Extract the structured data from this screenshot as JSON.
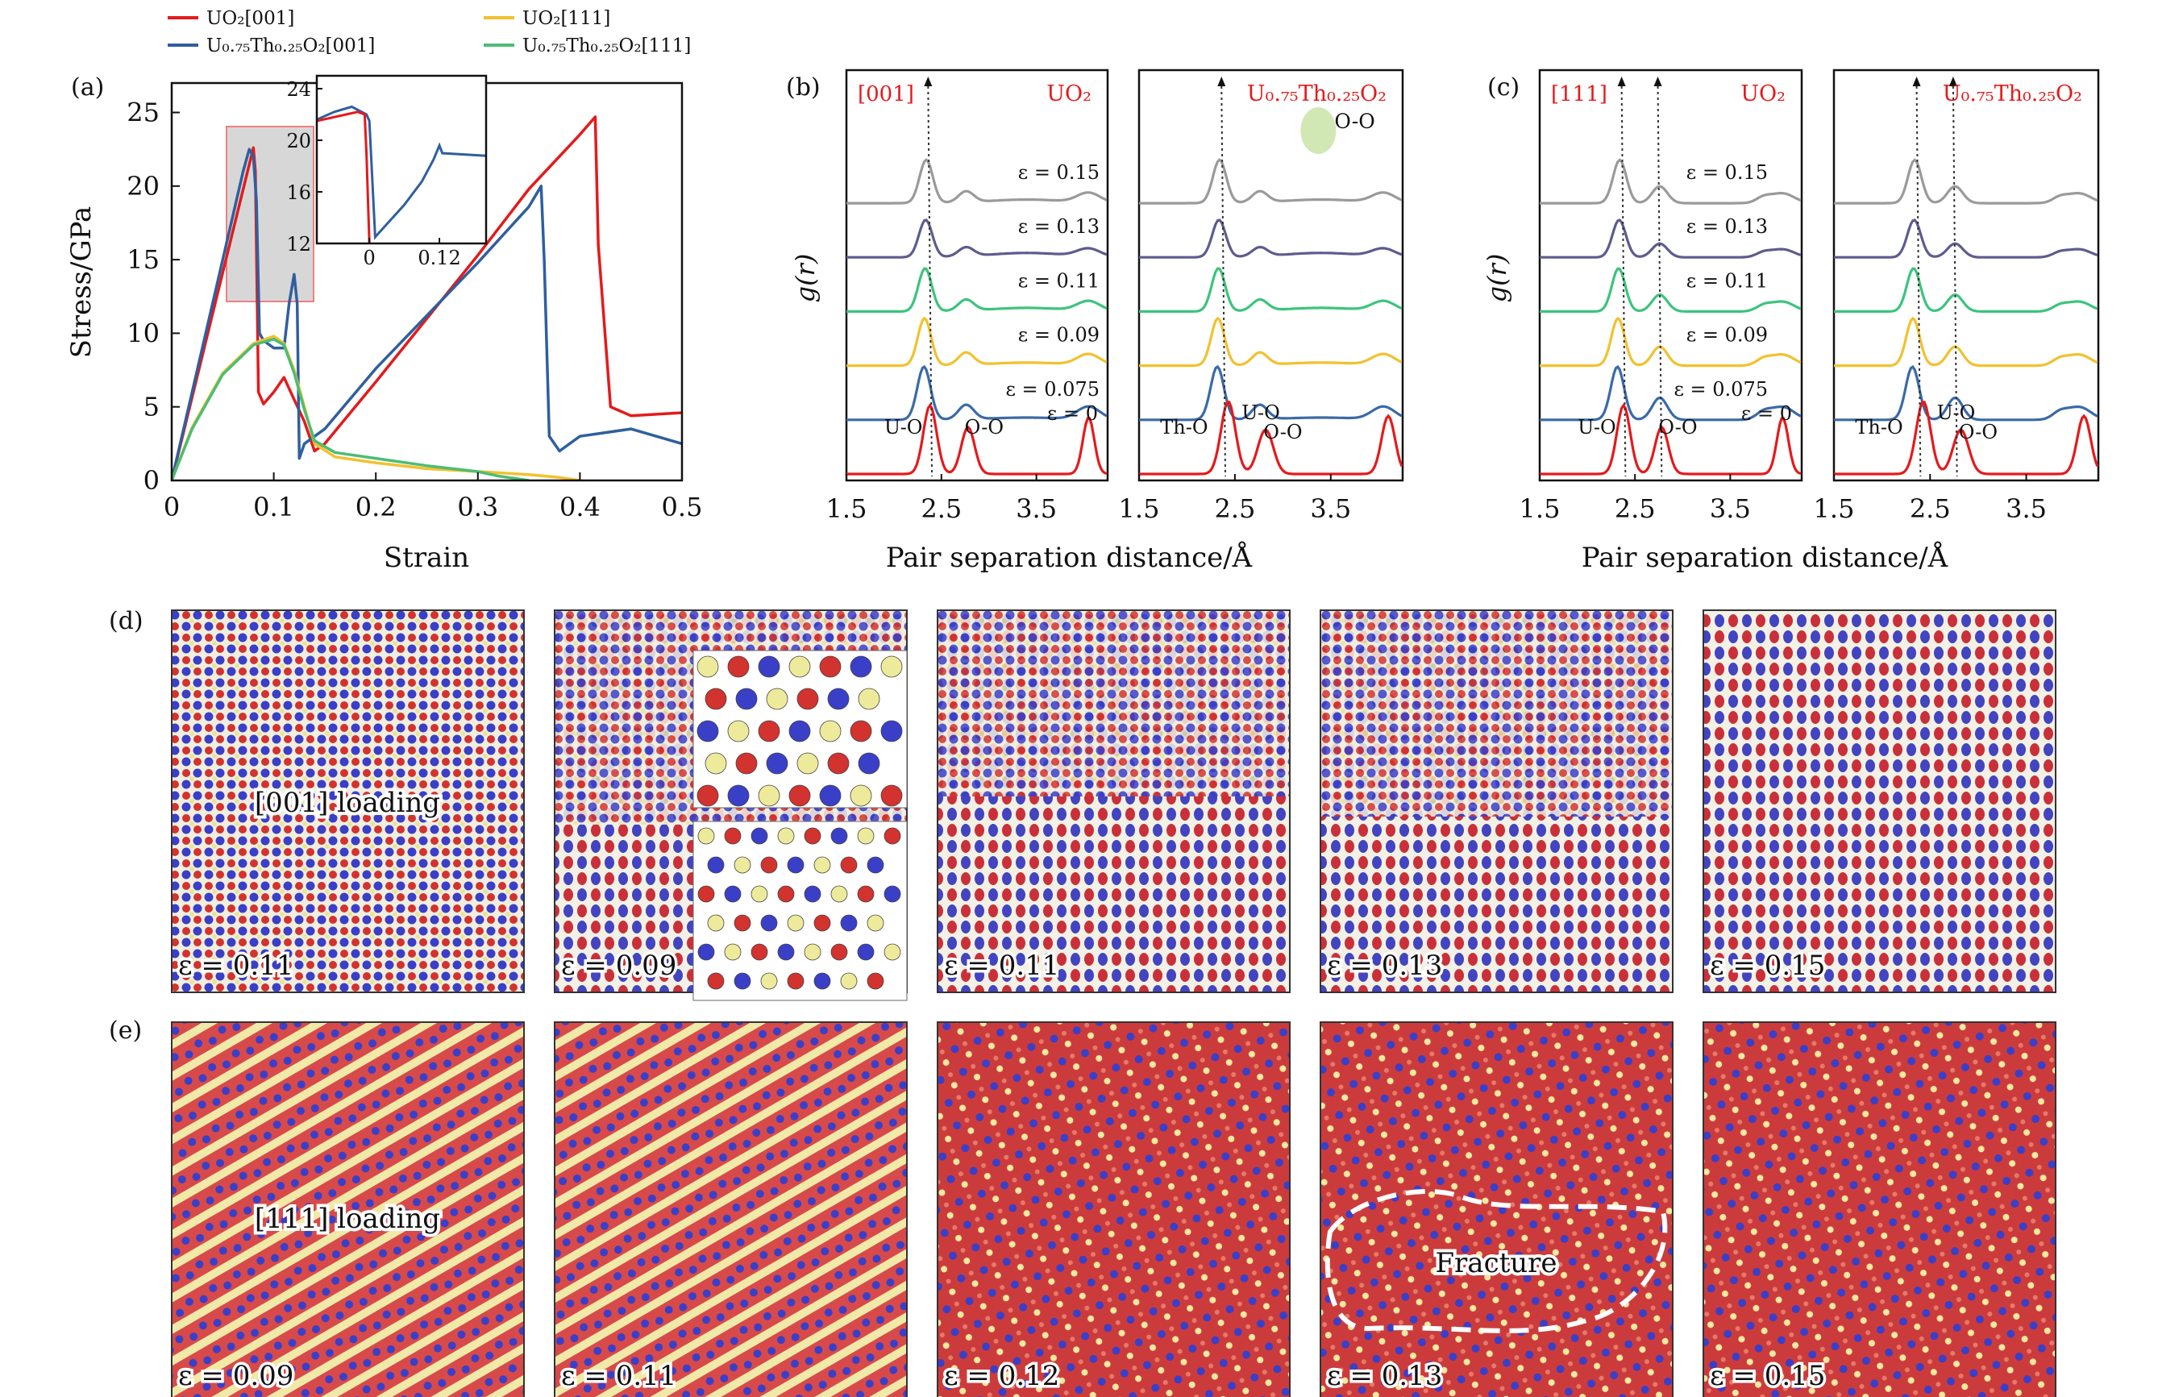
{
  "legend": [
    {
      "label": "UO₂[001]",
      "color": "#e41a1c"
    },
    {
      "label": "U₀.₇₅Th₀.₂₅O₂[001]",
      "color": "#2f5f9e"
    },
    {
      "label": "UO₂[111]",
      "color": "#f2c12e"
    },
    {
      "label": "U₀.₇₅Th₀.₂₅O₂[111]",
      "color": "#4dbd74"
    }
  ],
  "colors": {
    "grey": "#9a9a9a",
    "purple": "#5e5b8f",
    "green": "#3cc47c",
    "yellow": "#f2c12e",
    "blue": "#3a6aa8",
    "red": "#e41a1c",
    "o_atom": "#d2332e",
    "u_atom": "#3a3fc8",
    "th_atom": "#eeea9c"
  },
  "chart_data": [
    {
      "panel": "(a)",
      "type": "line",
      "xlabel": "Strain",
      "ylabel": "Stress/GPa",
      "xlim": [
        0,
        0.5
      ],
      "ylim": [
        0,
        27
      ],
      "xticks": [
        "0",
        "0.1",
        "0.2",
        "0.3",
        "0.4",
        "0.5"
      ],
      "yticks": [
        "0",
        "5",
        "10",
        "15",
        "20",
        "25"
      ],
      "series": [
        {
          "name": "UO₂[001]",
          "color": "#e41a1c",
          "x": [
            0,
            0.08,
            0.082,
            0.085,
            0.09,
            0.1,
            0.11,
            0.12,
            0.13,
            0.14,
            0.15,
            0.2,
            0.25,
            0.3,
            0.35,
            0.4,
            0.415,
            0.418,
            0.43,
            0.45,
            0.5
          ],
          "y": [
            0,
            22.6,
            21,
            6,
            5.2,
            6,
            7,
            5.5,
            4,
            2,
            2.5,
            6.7,
            11,
            15.3,
            19.8,
            23.5,
            24.7,
            16,
            5,
            4.4,
            4.6
          ]
        },
        {
          "name": "U₀.₇₅Th₀.₂₅O₂[001]",
          "color": "#2f5f9e",
          "x": [
            0,
            0.07,
            0.076,
            0.08,
            0.083,
            0.086,
            0.09,
            0.1,
            0.11,
            0.115,
            0.12,
            0.123,
            0.125,
            0.13,
            0.15,
            0.2,
            0.25,
            0.3,
            0.35,
            0.362,
            0.365,
            0.37,
            0.38,
            0.4,
            0.45,
            0.5
          ],
          "y": [
            0,
            21,
            22.5,
            22,
            19,
            10,
            9.5,
            9,
            9,
            12,
            14,
            12,
            1.5,
            2.5,
            3.5,
            7.6,
            11.2,
            14.8,
            18.6,
            20,
            15,
            3,
            2,
            3,
            3.5,
            2.5
          ]
        },
        {
          "name": "UO₂[111]",
          "color": "#f2c12e",
          "x": [
            0,
            0.02,
            0.05,
            0.08,
            0.1,
            0.11,
            0.12,
            0.13,
            0.14,
            0.16,
            0.2,
            0.25,
            0.3,
            0.35,
            0.38,
            0.4
          ],
          "y": [
            0,
            3.6,
            7.3,
            9.3,
            9.8,
            9.3,
            7.5,
            5,
            2.5,
            1.6,
            1.2,
            0.8,
            0.6,
            0.4,
            0.2,
            0
          ]
        },
        {
          "name": "U₀.₇₅Th₀.₂₅O₂[111]",
          "color": "#4dbd74",
          "x": [
            0,
            0.02,
            0.05,
            0.08,
            0.1,
            0.11,
            0.12,
            0.13,
            0.14,
            0.16,
            0.2,
            0.25,
            0.3,
            0.32,
            0.35
          ],
          "y": [
            0,
            3.5,
            7.2,
            9.2,
            9.6,
            9.2,
            7.3,
            4.8,
            2.7,
            1.9,
            1.5,
            1.0,
            0.6,
            0.3,
            0
          ]
        }
      ],
      "inset": {
        "xticks": [
          "0",
          "0.12"
        ],
        "yticks": [
          "12",
          "16",
          "20",
          "24"
        ],
        "xlim": [
          -0.09,
          0.2
        ],
        "ylim": [
          12,
          25
        ]
      }
    },
    {
      "panel": "(b)",
      "type": "line",
      "xlabel": "Pair separation distance/Å",
      "ylabel": "g(r)",
      "tag": "[001]",
      "xticks": [
        "1.5",
        "2.5",
        "3.5",
        "1.5",
        "2.5",
        "3.5"
      ],
      "subplots": [
        {
          "material": "UO₂",
          "peaks": [
            {
              "label": "U-O",
              "r": 2.36
            },
            {
              "label": "O-O",
              "r": 2.74
            }
          ],
          "strains": [
            "ε = 0.15",
            "ε = 0.13",
            "ε = 0.11",
            "ε = 0.09",
            "ε = 0.075",
            "ε = 0"
          ]
        },
        {
          "material": "U₀.₇₅Th₀.₂₅O₂",
          "peaks": [
            {
              "label": "Th-O",
              "r": 2.42
            },
            {
              "label": "U-O",
              "r": 2.36
            },
            {
              "label": "O-O",
              "r": 2.78
            }
          ],
          "annotation": "O-O"
        }
      ]
    },
    {
      "panel": "(c)",
      "type": "line",
      "xlabel": "Pair separation distance/Å",
      "ylabel": "g(r)",
      "tag": "[111]",
      "xticks": [
        "1.5",
        "2.5",
        "3.5",
        "1.5",
        "2.5",
        "3.5"
      ],
      "subplots": [
        {
          "material": "UO₂",
          "peaks": [
            {
              "label": "U-O",
              "r": 2.36
            },
            {
              "label": "O-O",
              "r": 2.74
            }
          ],
          "strains": [
            "ε = 0.15",
            "ε = 0.13",
            "ε = 0.11",
            "ε = 0.09",
            "ε = 0.075",
            "ε = 0"
          ]
        },
        {
          "material": "U₀.₇₅Th₀.₂₅O₂",
          "peaks": [
            {
              "label": "Th-O",
              "r": 2.42
            },
            {
              "label": "U-O",
              "r": 2.36
            },
            {
              "label": "O-O",
              "r": 2.78
            }
          ]
        }
      ]
    }
  ],
  "panel_labels": [
    "(a)",
    "(b)",
    "(c)",
    "(d)",
    "(e)"
  ],
  "panel_d": {
    "caption": "[001] loading",
    "strains": [
      "ε = 0.11",
      "ε = 0.09",
      "ε = 0.11",
      "ε = 0.13",
      "ε = 0.15"
    ]
  },
  "panel_e": {
    "caption": "[111] loading",
    "fracture_label": "Fracture",
    "strains": [
      "ε = 0.09",
      "ε = 0.11",
      "ε = 0.12",
      "ε = 0.13",
      "ε = 0.15"
    ]
  }
}
